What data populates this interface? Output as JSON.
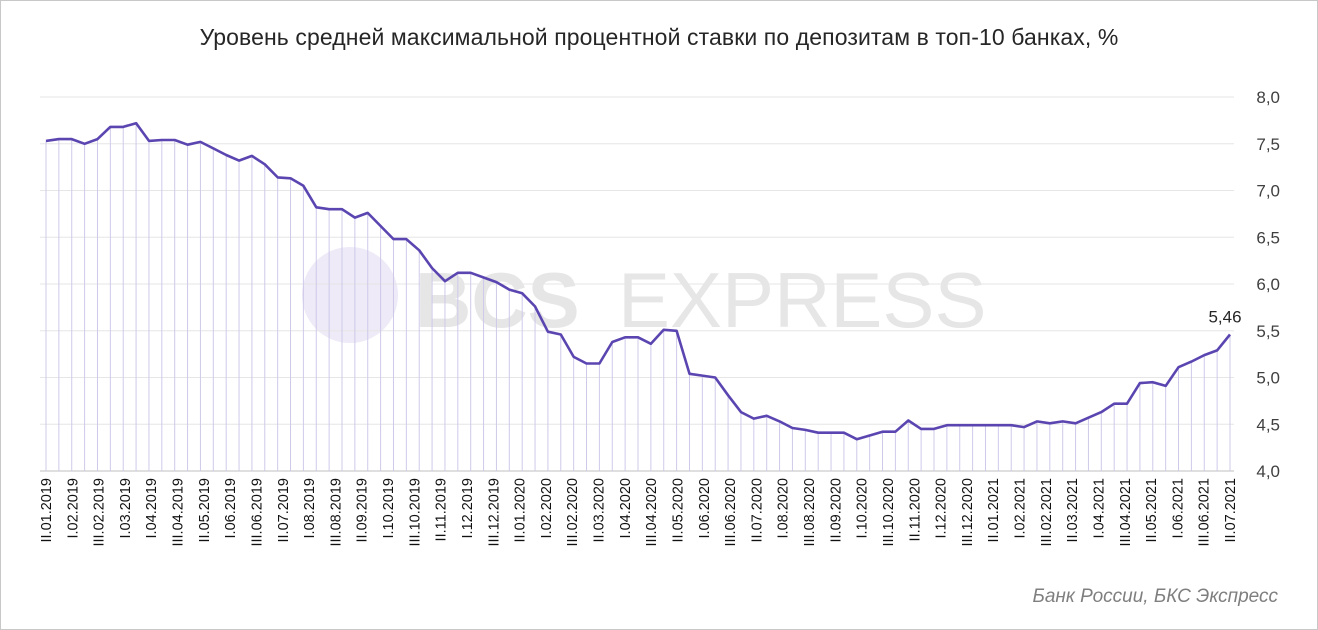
{
  "chart_data": {
    "type": "line",
    "title": "Уровень средней максимальной процентной ставки по депозитам в топ-10 банках, %",
    "source": "Банк России, БКС Экспресс",
    "watermark": {
      "bold": "BCS",
      "light": "EXPRESS"
    },
    "ylim": [
      4.0,
      8.0
    ],
    "yticks": [
      "4,0",
      "4,5",
      "5,0",
      "5,5",
      "6,0",
      "6,5",
      "7,0",
      "7,5",
      "8,0"
    ],
    "grid": "horizontal",
    "legend": "none",
    "line_color": "#5b45b0",
    "x_labels": [
      "II.01.2019",
      "I.02.2019",
      "III.02.2019",
      "I.03.2019",
      "I.04.2019",
      "III.04.2019",
      "II.05.2019",
      "I.06.2019",
      "III.06.2019",
      "II.07.2019",
      "I.08.2019",
      "III.08.2019",
      "II.09.2019",
      "I.10.2019",
      "III.10.2019",
      "II.11.2019",
      "I.12.2019",
      "III.12.2019",
      "II.01.2020",
      "I.02.2020",
      "III.02.2020",
      "II.03.2020",
      "I.04.2020",
      "III.04.2020",
      "II.05.2020",
      "I.06.2020",
      "III.06.2020",
      "II.07.2020",
      "I.08.2020",
      "III.08.2020",
      "II.09.2020",
      "I.10.2020",
      "III.10.2020",
      "II.11.2020",
      "I.12.2020",
      "III.12.2020",
      "II.01.2021",
      "I.02.2021",
      "III.02.2021",
      "II.03.2021",
      "I.04.2021",
      "III.04.2021",
      "II.05.2021",
      "I.06.2021",
      "III.06.2021",
      "II.07.2021"
    ],
    "values": [
      7.53,
      7.55,
      7.55,
      7.5,
      7.55,
      7.68,
      7.68,
      7.72,
      7.53,
      7.54,
      7.54,
      7.49,
      7.52,
      7.45,
      7.38,
      7.32,
      7.37,
      7.28,
      7.14,
      7.13,
      7.05,
      6.82,
      6.8,
      6.8,
      6.71,
      6.76,
      6.62,
      6.48,
      6.48,
      6.36,
      6.17,
      6.03,
      6.12,
      6.12,
      6.07,
      6.02,
      5.94,
      5.9,
      5.76,
      5.49,
      5.46,
      5.22,
      5.15,
      5.15,
      5.38,
      5.43,
      5.43,
      5.36,
      5.51,
      5.5,
      5.04,
      5.02,
      5.0,
      4.81,
      4.63,
      4.56,
      4.59,
      4.53,
      4.46,
      4.44,
      4.41,
      4.41,
      4.41,
      4.34,
      4.38,
      4.42,
      4.42,
      4.54,
      4.45,
      4.45,
      4.49,
      4.49,
      4.49,
      4.49,
      4.49,
      4.49,
      4.47,
      4.53,
      4.51,
      4.53,
      4.51,
      4.57,
      4.63,
      4.72,
      4.72,
      4.94,
      4.95,
      4.91,
      5.11,
      5.17,
      5.24,
      5.29,
      5.46
    ],
    "annotations": [
      {
        "index": 92,
        "text": "5,46"
      }
    ]
  }
}
